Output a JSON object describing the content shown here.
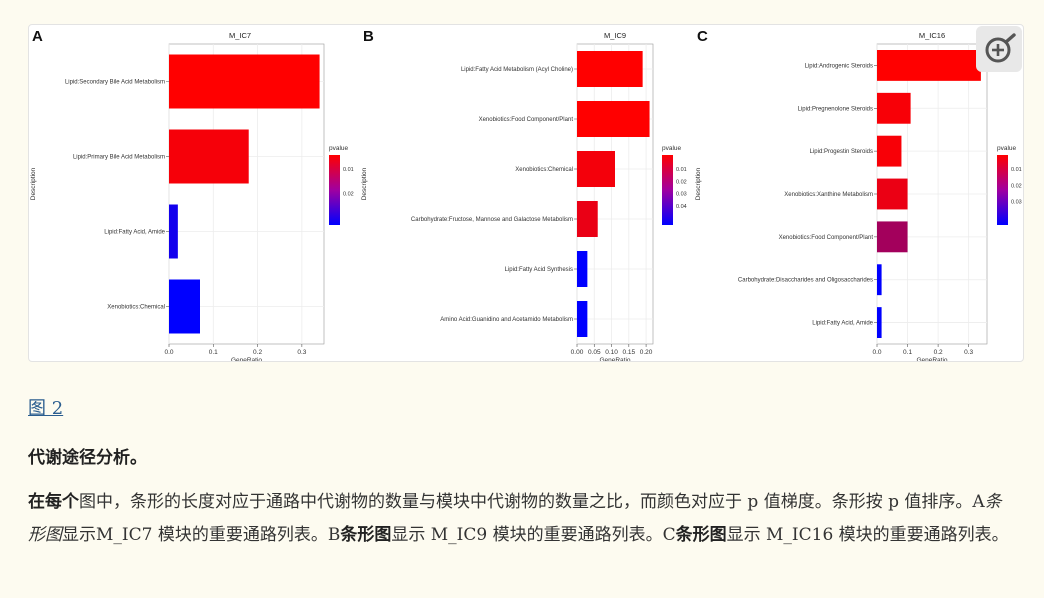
{
  "figure": {
    "panels": [
      {
        "letter": "A",
        "title": "M_IC7",
        "xlabel": "GeneRatio",
        "ylabel": "Description",
        "legend_title": "pvalue",
        "legend_ticks": [
          "0.01",
          "0.02"
        ]
      },
      {
        "letter": "B",
        "title": "M_IC9",
        "xlabel": "GeneRatio",
        "ylabel": "Description",
        "legend_title": "pvalue",
        "legend_ticks": [
          "0.01",
          "0.02",
          "0.03",
          "0.04"
        ]
      },
      {
        "letter": "C",
        "title": "M_IC16",
        "xlabel": "GeneRatio",
        "ylabel": "Description",
        "legend_title": "pvalue",
        "legend_ticks": [
          "0.01",
          "0.02",
          "0.03"
        ]
      }
    ],
    "colors": {
      "low_p": "#ff0000",
      "high_p": "#0000ff"
    }
  },
  "chart_data": [
    {
      "type": "bar",
      "orientation": "horizontal",
      "title": "M_IC7",
      "xlabel": "GeneRatio",
      "ylabel": "Description",
      "xlim": [
        0,
        0.35
      ],
      "xticks": [
        "0.0",
        "0.1",
        "0.2",
        "0.3"
      ],
      "xtick_values": [
        0,
        0.1,
        0.2,
        0.3
      ],
      "categories": [
        "Lipid:Secondary Bile Acid Metabolism",
        "Lipid:Primary Bile Acid Metabolism",
        "Lipid:Fatty Acid, Amide",
        "Xenobiotics:Chemical"
      ],
      "values": [
        0.34,
        0.18,
        0.02,
        0.07
      ],
      "pvalue": [
        0.001,
        0.002,
        0.028,
        0.03
      ],
      "legend": "right",
      "grid": true
    },
    {
      "type": "bar",
      "orientation": "horizontal",
      "title": "M_IC9",
      "xlabel": "GeneRatio",
      "ylabel": "Description",
      "xlim": [
        0,
        0.22
      ],
      "xticks": [
        "0.00",
        "0.05",
        "0.10",
        "0.15",
        "0.20"
      ],
      "xtick_values": [
        0,
        0.05,
        0.1,
        0.15,
        0.2
      ],
      "categories": [
        "Lipid:Fatty Acid Metabolism (Acyl Choline)",
        "Xenobiotics:Food Component/Plant",
        "Xenobiotics:Chemical",
        "Carbohydrate:Fructose, Mannose and Galactose Metabolism",
        "Lipid:Fatty Acid Synthesis",
        "Amino Acid:Guanidino and Acetamido Metabolism"
      ],
      "values": [
        0.19,
        0.21,
        0.11,
        0.06,
        0.03,
        0.03
      ],
      "pvalue": [
        0.002,
        0.002,
        0.004,
        0.006,
        0.05,
        0.05
      ],
      "legend": "right",
      "grid": true
    },
    {
      "type": "bar",
      "orientation": "horizontal",
      "title": "M_IC16",
      "xlabel": "GeneRatio",
      "ylabel": "Description",
      "xlim": [
        0,
        0.36
      ],
      "xticks": [
        "0.0",
        "0.1",
        "0.2",
        "0.3"
      ],
      "xtick_values": [
        0,
        0.1,
        0.2,
        0.3
      ],
      "categories": [
        "Lipid:Androgenic Steroids",
        "Lipid:Pregnenolone Steroids",
        "Lipid:Progestin Steroids",
        "Xenobiotics:Xanthine Metabolism",
        "Xenobiotics:Food Component/Plant",
        "Carbohydrate:Disaccharides and Oligosaccharides",
        "Lipid:Fatty Acid, Amide"
      ],
      "values": [
        0.34,
        0.11,
        0.08,
        0.1,
        0.1,
        0.015,
        0.015
      ],
      "pvalue": [
        0.001,
        0.002,
        0.002,
        0.004,
        0.015,
        0.04,
        0.04
      ],
      "legend": "right",
      "grid": true
    }
  ],
  "text": {
    "fig_link": "图 2",
    "section_title": "代谢途径分析。",
    "caption": {
      "p1_bold": "在每个",
      "p2": "图中，条形的长度对应于通路中代谢物的数量与模块中代谢物的数量之比，而颜色对应于 p 值梯度。条形按 p 值排序。A",
      "p3_italic": "条形图",
      "p4": "显示M_IC7 模块的重要通路列表。B",
      "p5_bold": "条形图",
      "p6": "显示 M_IC9 模块的重要通路列表。C",
      "p7_bold": "条形图",
      "p8": "显示 M_IC16 模块的重要通路列表。"
    }
  }
}
